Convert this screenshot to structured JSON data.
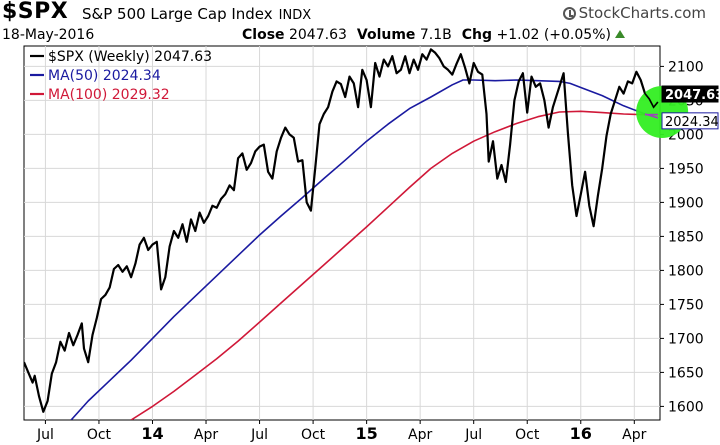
{
  "header": {
    "symbol": "$SPX",
    "description": "S&P 500 Large Cap Index",
    "exchange": "INDX",
    "date": "18-May-2016",
    "close_label": "Close",
    "close_value": "2047.63",
    "volume_label": "Volume",
    "volume_value": "7.1B",
    "chg_label": "Chg",
    "chg_value": "+1.02 (+0.05%)",
    "brand": "StockCharts.com",
    "brand_icon": "stockcharts-logo-icon",
    "up_icon": "up-triangle-icon"
  },
  "chart_data": {
    "type": "line",
    "x_ticks": [
      "Jul",
      "Oct",
      "14",
      "Apr",
      "Jul",
      "Oct",
      "15",
      "Apr",
      "Jul",
      "Oct",
      "16",
      "Apr"
    ],
    "x_tick_positions": [
      0.1,
      0.35,
      0.6,
      0.85,
      1.1,
      1.35,
      1.6,
      1.85,
      2.1,
      2.35,
      2.6,
      2.85
    ],
    "x_bold_ticks": [
      "14",
      "15",
      "16"
    ],
    "x_range": [
      0.0,
      2.97
    ],
    "y_range": [
      1580,
      2130
    ],
    "y_ticks": [
      1600,
      1650,
      1700,
      1750,
      1800,
      1850,
      1900,
      1950,
      2000,
      2050,
      2100
    ],
    "grid": true,
    "legend": "top-left",
    "series": [
      {
        "name": "$SPX (Weekly) 2047.63",
        "color": "#000000",
        "points": [
          [
            0.0,
            1665
          ],
          [
            0.02,
            1650
          ],
          [
            0.04,
            1635
          ],
          [
            0.05,
            1645
          ],
          [
            0.07,
            1615
          ],
          [
            0.09,
            1592
          ],
          [
            0.11,
            1608
          ],
          [
            0.13,
            1648
          ],
          [
            0.15,
            1665
          ],
          [
            0.17,
            1695
          ],
          [
            0.19,
            1682
          ],
          [
            0.21,
            1708
          ],
          [
            0.23,
            1690
          ],
          [
            0.25,
            1705
          ],
          [
            0.27,
            1722
          ],
          [
            0.28,
            1685
          ],
          [
            0.3,
            1665
          ],
          [
            0.32,
            1705
          ],
          [
            0.34,
            1730
          ],
          [
            0.36,
            1758
          ],
          [
            0.38,
            1764
          ],
          [
            0.4,
            1775
          ],
          [
            0.42,
            1802
          ],
          [
            0.44,
            1808
          ],
          [
            0.46,
            1798
          ],
          [
            0.48,
            1806
          ],
          [
            0.5,
            1790
          ],
          [
            0.52,
            1810
          ],
          [
            0.54,
            1838
          ],
          [
            0.56,
            1848
          ],
          [
            0.58,
            1830
          ],
          [
            0.6,
            1838
          ],
          [
            0.62,
            1842
          ],
          [
            0.64,
            1772
          ],
          [
            0.66,
            1790
          ],
          [
            0.68,
            1835
          ],
          [
            0.7,
            1858
          ],
          [
            0.72,
            1848
          ],
          [
            0.74,
            1868
          ],
          [
            0.76,
            1842
          ],
          [
            0.78,
            1875
          ],
          [
            0.8,
            1858
          ],
          [
            0.82,
            1885
          ],
          [
            0.84,
            1870
          ],
          [
            0.86,
            1880
          ],
          [
            0.88,
            1895
          ],
          [
            0.9,
            1892
          ],
          [
            0.92,
            1905
          ],
          [
            0.94,
            1912
          ],
          [
            0.96,
            1925
          ],
          [
            0.98,
            1918
          ],
          [
            1.0,
            1965
          ],
          [
            1.02,
            1972
          ],
          [
            1.04,
            1948
          ],
          [
            1.06,
            1958
          ],
          [
            1.08,
            1975
          ],
          [
            1.1,
            1982
          ],
          [
            1.12,
            1985
          ],
          [
            1.14,
            1945
          ],
          [
            1.16,
            1935
          ],
          [
            1.18,
            1975
          ],
          [
            1.2,
            1995
          ],
          [
            1.22,
            2010
          ],
          [
            1.24,
            2000
          ],
          [
            1.26,
            1995
          ],
          [
            1.28,
            1960
          ],
          [
            1.3,
            1962
          ],
          [
            1.32,
            1900
          ],
          [
            1.34,
            1888
          ],
          [
            1.36,
            1950
          ],
          [
            1.38,
            2015
          ],
          [
            1.4,
            2030
          ],
          [
            1.42,
            2040
          ],
          [
            1.44,
            2063
          ],
          [
            1.46,
            2078
          ],
          [
            1.48,
            2074
          ],
          [
            1.5,
            2055
          ],
          [
            1.52,
            2085
          ],
          [
            1.54,
            2075
          ],
          [
            1.56,
            2040
          ],
          [
            1.58,
            2095
          ],
          [
            1.6,
            2080
          ],
          [
            1.62,
            2040
          ],
          [
            1.64,
            2105
          ],
          [
            1.66,
            2085
          ],
          [
            1.68,
            2110
          ],
          [
            1.7,
            2100
          ],
          [
            1.72,
            2115
          ],
          [
            1.74,
            2090
          ],
          [
            1.76,
            2095
          ],
          [
            1.78,
            2115
          ],
          [
            1.8,
            2090
          ],
          [
            1.82,
            2110
          ],
          [
            1.84,
            2095
          ],
          [
            1.86,
            2118
          ],
          [
            1.88,
            2110
          ],
          [
            1.9,
            2125
          ],
          [
            1.92,
            2120
          ],
          [
            1.94,
            2112
          ],
          [
            1.96,
            2100
          ],
          [
            1.98,
            2095
          ],
          [
            2.0,
            2088
          ],
          [
            2.02,
            2104
          ],
          [
            2.04,
            2118
          ],
          [
            2.06,
            2098
          ],
          [
            2.08,
            2075
          ],
          [
            2.1,
            2105
          ],
          [
            2.12,
            2092
          ],
          [
            2.14,
            2088
          ],
          [
            2.16,
            2030
          ],
          [
            2.17,
            1960
          ],
          [
            2.19,
            1990
          ],
          [
            2.21,
            1935
          ],
          [
            2.23,
            1955
          ],
          [
            2.25,
            1930
          ],
          [
            2.27,
            1985
          ],
          [
            2.29,
            2050
          ],
          [
            2.31,
            2078
          ],
          [
            2.33,
            2090
          ],
          [
            2.35,
            2032
          ],
          [
            2.37,
            2085
          ],
          [
            2.39,
            2070
          ],
          [
            2.41,
            2075
          ],
          [
            2.43,
            2050
          ],
          [
            2.45,
            2010
          ],
          [
            2.47,
            2040
          ],
          [
            2.49,
            2060
          ],
          [
            2.51,
            2080
          ],
          [
            2.52,
            2090
          ],
          [
            2.54,
            2002
          ],
          [
            2.56,
            1925
          ],
          [
            2.58,
            1880
          ],
          [
            2.6,
            1912
          ],
          [
            2.62,
            1945
          ],
          [
            2.64,
            1895
          ],
          [
            2.66,
            1865
          ],
          [
            2.68,
            1910
          ],
          [
            2.7,
            1950
          ],
          [
            2.72,
            1998
          ],
          [
            2.74,
            2030
          ],
          [
            2.76,
            2050
          ],
          [
            2.78,
            2070
          ],
          [
            2.8,
            2060
          ],
          [
            2.82,
            2078
          ],
          [
            2.84,
            2075
          ],
          [
            2.86,
            2092
          ],
          [
            2.88,
            2080
          ],
          [
            2.9,
            2060
          ],
          [
            2.92,
            2052
          ],
          [
            2.94,
            2040
          ],
          [
            2.96,
            2047.63
          ]
        ]
      },
      {
        "name": "MA(50) 2024.34",
        "color": "#1a1aa0",
        "points": [
          [
            0.22,
            1580
          ],
          [
            0.3,
            1608
          ],
          [
            0.4,
            1638
          ],
          [
            0.5,
            1668
          ],
          [
            0.6,
            1700
          ],
          [
            0.7,
            1732
          ],
          [
            0.8,
            1762
          ],
          [
            0.9,
            1792
          ],
          [
            1.0,
            1822
          ],
          [
            1.1,
            1852
          ],
          [
            1.2,
            1880
          ],
          [
            1.3,
            1907
          ],
          [
            1.4,
            1935
          ],
          [
            1.5,
            1962
          ],
          [
            1.6,
            1990
          ],
          [
            1.7,
            2015
          ],
          [
            1.8,
            2038
          ],
          [
            1.9,
            2055
          ],
          [
            2.0,
            2073
          ],
          [
            2.05,
            2080
          ],
          [
            2.1,
            2080
          ],
          [
            2.2,
            2079
          ],
          [
            2.3,
            2080
          ],
          [
            2.4,
            2079
          ],
          [
            2.5,
            2078
          ],
          [
            2.55,
            2075
          ],
          [
            2.6,
            2069
          ],
          [
            2.7,
            2057
          ],
          [
            2.8,
            2042
          ],
          [
            2.9,
            2030
          ],
          [
            2.96,
            2024.34
          ]
        ]
      },
      {
        "name": "MA(100) 2029.32",
        "color": "#d01838",
        "points": [
          [
            0.5,
            1580
          ],
          [
            0.6,
            1600
          ],
          [
            0.7,
            1622
          ],
          [
            0.8,
            1646
          ],
          [
            0.9,
            1670
          ],
          [
            1.0,
            1696
          ],
          [
            1.1,
            1724
          ],
          [
            1.2,
            1752
          ],
          [
            1.3,
            1780
          ],
          [
            1.4,
            1808
          ],
          [
            1.5,
            1836
          ],
          [
            1.6,
            1864
          ],
          [
            1.7,
            1893
          ],
          [
            1.8,
            1922
          ],
          [
            1.9,
            1950
          ],
          [
            2.0,
            1972
          ],
          [
            2.1,
            1990
          ],
          [
            2.2,
            2004
          ],
          [
            2.3,
            2016
          ],
          [
            2.4,
            2026
          ],
          [
            2.5,
            2033
          ],
          [
            2.6,
            2034
          ],
          [
            2.7,
            2032
          ],
          [
            2.8,
            2030
          ],
          [
            2.9,
            2029
          ],
          [
            2.96,
            2029.32
          ]
        ]
      }
    ],
    "price_labels": [
      {
        "text": "2047.63",
        "value": 2047.63,
        "color": "#000000",
        "border": "#000000",
        "text_color": "#ffffff"
      },
      {
        "text": "2024.34",
        "value": 2024.34,
        "color": "#ffffff",
        "border": "#1a1aa0",
        "text_color": "#000000"
      }
    ],
    "highlight_circle": {
      "x": 2.98,
      "y": 2033,
      "color": "#33ee22"
    }
  }
}
